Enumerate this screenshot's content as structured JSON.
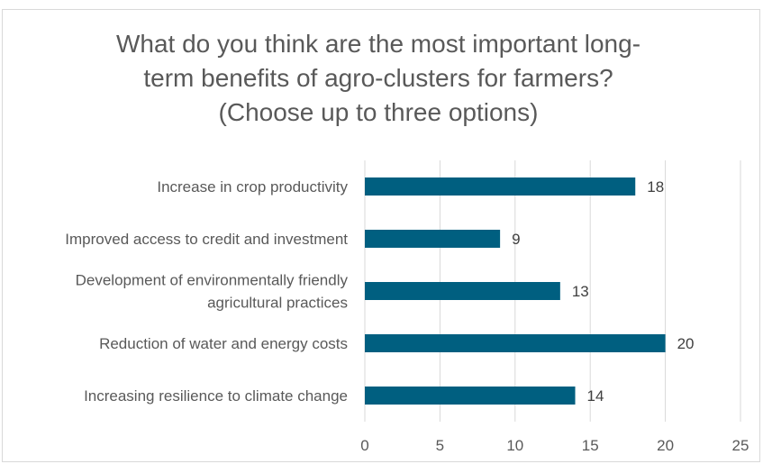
{
  "chart_data": {
    "type": "bar",
    "orientation": "horizontal",
    "title": "What do you think are the most important long-term benefits of agro-clusters for farmers? (Choose up to three options)",
    "title_lines": [
      "What do you think are the most important long-",
      "term benefits of agro-clusters for farmers?",
      "(Choose up to three options)"
    ],
    "categories": [
      [
        "Increase in crop productivity"
      ],
      [
        "Improved access to credit and investment"
      ],
      [
        "Development of environmentally friendly",
        "agricultural practices"
      ],
      [
        "Reduction of water and energy costs"
      ],
      [
        "Increasing resilience to climate change"
      ]
    ],
    "values": [
      18,
      9,
      13,
      20,
      14
    ],
    "xlim": [
      0,
      25
    ],
    "xticks": [
      0,
      5,
      10,
      15,
      20,
      25
    ],
    "bar_color": "#005f80",
    "grid": "vertical",
    "data_labels": true,
    "legend": "none"
  }
}
